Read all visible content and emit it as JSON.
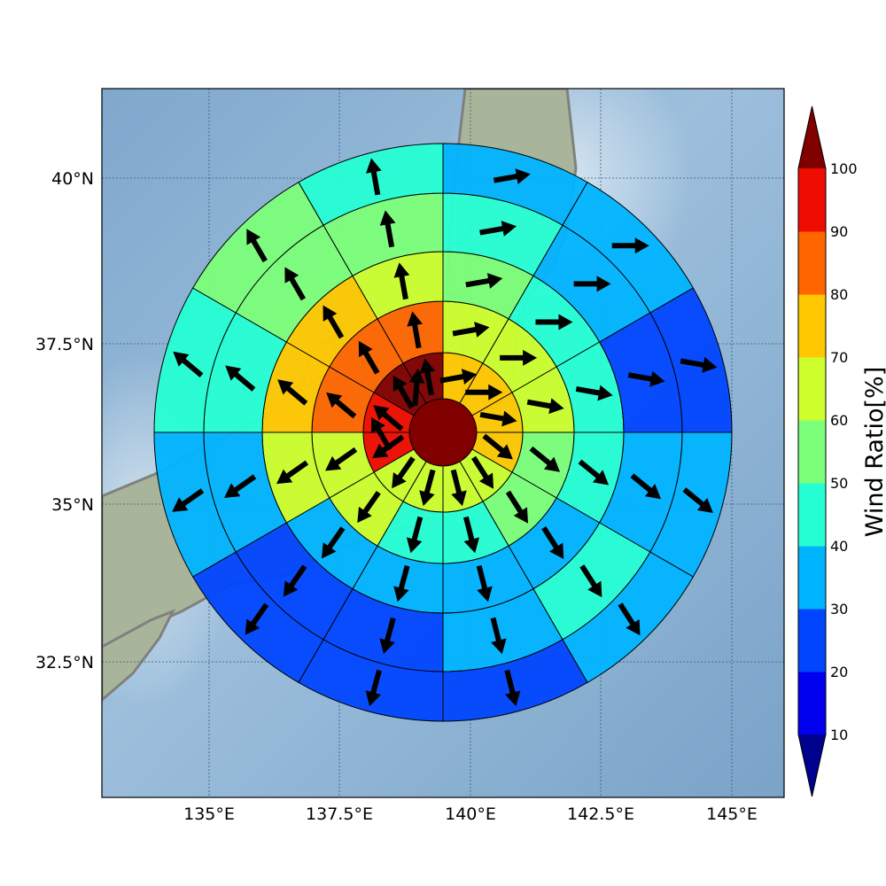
{
  "map": {
    "lon_ticks": [
      "135°E",
      "137.5°E",
      "140°E",
      "142.5°E",
      "145°E"
    ],
    "lat_ticks": [
      "40°N",
      "37.5°N",
      "35°N",
      "32.5°N"
    ],
    "center": {
      "lon": 139.4,
      "lat": 35.6
    }
  },
  "colorbar": {
    "title": "Wind Ratio[%]",
    "tick_labels": [
      "10",
      "20",
      "30",
      "40",
      "50",
      "60",
      "70",
      "80",
      "90",
      "100"
    ],
    "colors": [
      "#00009e",
      "#0000ef",
      "#0046ff",
      "#00b4ff",
      "#26ffd4",
      "#7cff79",
      "#ccff2c",
      "#ffc800",
      "#ff6600",
      "#ef0c00",
      "#800000"
    ],
    "over_color": "#800000",
    "under_color": "#00008f"
  },
  "chart_data": {
    "type": "polar-sector-map",
    "units": "Wind Ratio [%]",
    "sector_bearings_deg": [
      0,
      30,
      60,
      90,
      120,
      150,
      180,
      210,
      240,
      270,
      300,
      330
    ],
    "center_ratio": 100,
    "rings": [
      {
        "ring": 1,
        "ratios": [
          75,
          75,
          75,
          75,
          60,
          60,
          60,
          60,
          95,
          95,
          100,
          100
        ]
      },
      {
        "ring": 2,
        "ratios": [
          65,
          65,
          65,
          55,
          55,
          45,
          45,
          65,
          65,
          85,
          85,
          85
        ]
      },
      {
        "ring": 3,
        "ratios": [
          55,
          45,
          45,
          45,
          35,
          35,
          35,
          35,
          65,
          75,
          75,
          65
        ]
      },
      {
        "ring": 4,
        "ratios": [
          45,
          35,
          25,
          35,
          45,
          35,
          25,
          25,
          35,
          45,
          55,
          55
        ]
      },
      {
        "ring": 5,
        "ratios": [
          35,
          35,
          25,
          35,
          35,
          25,
          25,
          25,
          35,
          45,
          55,
          45
        ]
      }
    ]
  }
}
